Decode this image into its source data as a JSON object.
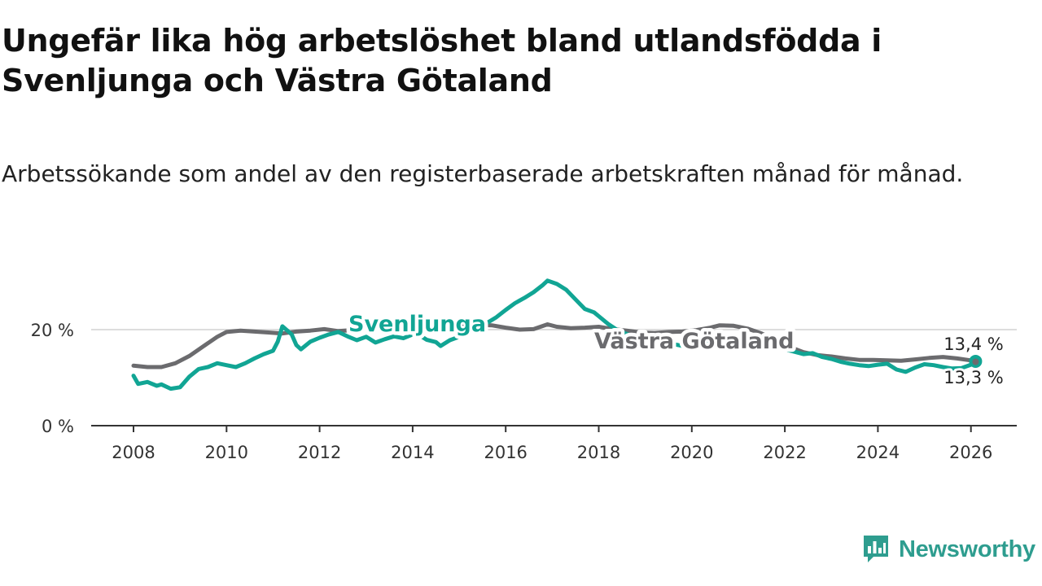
{
  "header": {
    "title": "Ungefär lika hög arbetslöshet bland utlandsfödda i Svenljunga och Västra Götaland",
    "subtitle": "Arbetssökande som andel av den registerbaserade arbetskraften månad för månad."
  },
  "brand": {
    "name": "Newsworthy",
    "icon": "newsworthy-logo-icon",
    "color": "#2e9d8f"
  },
  "chart_data": {
    "type": "line",
    "title": "Ungefär lika hög arbetslöshet bland utlandsfödda i Svenljunga och Västra Götaland",
    "xlabel": "",
    "ylabel": "",
    "xlim": [
      2007.4,
      2027.0
    ],
    "ylim": [
      0,
      30
    ],
    "x_ticks": [
      2008,
      2010,
      2012,
      2014,
      2016,
      2018,
      2020,
      2022,
      2024,
      2026
    ],
    "x_tick_labels": [
      "2008",
      "2010",
      "2012",
      "2014",
      "2016",
      "2018",
      "2020",
      "2022",
      "2024",
      "2026"
    ],
    "y_ticks": [
      0,
      20
    ],
    "y_tick_labels": [
      "0 %",
      "20 %"
    ],
    "grid": "horizontal",
    "series": [
      {
        "name": "Västra Götaland",
        "label": "Västra Götaland",
        "color": "#6b6b6e",
        "end_label": "13,3 %",
        "points": [
          [
            2008.0,
            12.5
          ],
          [
            2008.3,
            12.2
          ],
          [
            2008.6,
            12.2
          ],
          [
            2008.9,
            13.0
          ],
          [
            2009.2,
            14.5
          ],
          [
            2009.5,
            16.5
          ],
          [
            2009.8,
            18.5
          ],
          [
            2010.0,
            19.5
          ],
          [
            2010.3,
            19.8
          ],
          [
            2010.6,
            19.6
          ],
          [
            2010.9,
            19.4
          ],
          [
            2011.2,
            19.2
          ],
          [
            2011.5,
            19.6
          ],
          [
            2011.8,
            19.8
          ],
          [
            2012.1,
            20.1
          ],
          [
            2012.4,
            19.7
          ],
          [
            2012.7,
            19.9
          ],
          [
            2013.0,
            20.2
          ],
          [
            2013.3,
            20.4
          ],
          [
            2013.6,
            20.6
          ],
          [
            2013.9,
            20.8
          ],
          [
            2014.2,
            21.0
          ],
          [
            2014.5,
            21.2
          ],
          [
            2014.8,
            21.3
          ],
          [
            2015.1,
            21.0
          ],
          [
            2015.4,
            21.0
          ],
          [
            2015.7,
            20.9
          ],
          [
            2016.0,
            20.4
          ],
          [
            2016.3,
            20.0
          ],
          [
            2016.6,
            20.1
          ],
          [
            2016.9,
            21.1
          ],
          [
            2017.1,
            20.6
          ],
          [
            2017.4,
            20.3
          ],
          [
            2017.7,
            20.4
          ],
          [
            2018.0,
            20.6
          ],
          [
            2018.3,
            20.1
          ],
          [
            2018.6,
            19.8
          ],
          [
            2018.9,
            19.4
          ],
          [
            2019.2,
            19.3
          ],
          [
            2019.5,
            19.5
          ],
          [
            2019.8,
            19.6
          ],
          [
            2020.1,
            19.9
          ],
          [
            2020.4,
            20.4
          ],
          [
            2020.6,
            20.9
          ],
          [
            2020.9,
            20.8
          ],
          [
            2021.2,
            20.2
          ],
          [
            2021.5,
            19.2
          ],
          [
            2021.8,
            17.8
          ],
          [
            2022.1,
            16.4
          ],
          [
            2022.4,
            15.3
          ],
          [
            2022.7,
            14.7
          ],
          [
            2023.0,
            14.4
          ],
          [
            2023.3,
            14.0
          ],
          [
            2023.6,
            13.7
          ],
          [
            2023.9,
            13.7
          ],
          [
            2024.2,
            13.6
          ],
          [
            2024.5,
            13.5
          ],
          [
            2024.8,
            13.8
          ],
          [
            2025.1,
            14.1
          ],
          [
            2025.4,
            14.3
          ],
          [
            2025.7,
            14.0
          ],
          [
            2026.0,
            13.6
          ],
          [
            2026.1,
            13.3
          ]
        ]
      },
      {
        "name": "Svenljunga",
        "label": "Svenljunga",
        "color": "#11a594",
        "end_label": "13,4 %",
        "points": [
          [
            2008.0,
            10.4
          ],
          [
            2008.1,
            8.7
          ],
          [
            2008.3,
            9.1
          ],
          [
            2008.5,
            8.3
          ],
          [
            2008.6,
            8.6
          ],
          [
            2008.8,
            7.7
          ],
          [
            2009.0,
            8.0
          ],
          [
            2009.2,
            10.2
          ],
          [
            2009.4,
            11.8
          ],
          [
            2009.6,
            12.2
          ],
          [
            2009.8,
            13.0
          ],
          [
            2010.0,
            12.6
          ],
          [
            2010.2,
            12.2
          ],
          [
            2010.4,
            13.0
          ],
          [
            2010.6,
            14.0
          ],
          [
            2010.8,
            14.9
          ],
          [
            2011.0,
            15.6
          ],
          [
            2011.1,
            17.5
          ],
          [
            2011.2,
            20.7
          ],
          [
            2011.4,
            19.0
          ],
          [
            2011.5,
            16.8
          ],
          [
            2011.6,
            15.9
          ],
          [
            2011.8,
            17.5
          ],
          [
            2012.0,
            18.3
          ],
          [
            2012.2,
            19.0
          ],
          [
            2012.4,
            19.5
          ],
          [
            2012.6,
            18.6
          ],
          [
            2012.8,
            17.8
          ],
          [
            2013.0,
            18.5
          ],
          [
            2013.2,
            17.3
          ],
          [
            2013.4,
            18.0
          ],
          [
            2013.6,
            18.6
          ],
          [
            2013.8,
            18.2
          ],
          [
            2014.0,
            19.0
          ],
          [
            2014.2,
            18.5
          ],
          [
            2014.3,
            17.9
          ],
          [
            2014.5,
            17.4
          ],
          [
            2014.6,
            16.6
          ],
          [
            2014.8,
            17.8
          ],
          [
            2015.0,
            18.5
          ],
          [
            2015.2,
            19.3
          ],
          [
            2015.4,
            20.3
          ],
          [
            2015.6,
            21.4
          ],
          [
            2015.8,
            22.6
          ],
          [
            2016.0,
            24.1
          ],
          [
            2016.2,
            25.5
          ],
          [
            2016.4,
            26.6
          ],
          [
            2016.6,
            27.8
          ],
          [
            2016.8,
            29.3
          ],
          [
            2016.9,
            30.2
          ],
          [
            2017.1,
            29.5
          ],
          [
            2017.3,
            28.3
          ],
          [
            2017.5,
            26.3
          ],
          [
            2017.7,
            24.3
          ],
          [
            2017.9,
            23.6
          ],
          [
            2018.0,
            22.8
          ],
          [
            2018.2,
            21.2
          ],
          [
            2018.4,
            19.9
          ],
          [
            2018.6,
            19.1
          ],
          [
            2018.8,
            18.4
          ],
          [
            2019.0,
            17.9
          ],
          [
            2019.2,
            17.3
          ],
          [
            2019.4,
            17.6
          ],
          [
            2019.6,
            17.0
          ],
          [
            2019.8,
            16.6
          ],
          [
            2020.0,
            16.1
          ],
          [
            2020.2,
            17.4
          ],
          [
            2020.4,
            17.5
          ],
          [
            2020.6,
            17.0
          ],
          [
            2020.8,
            16.9
          ],
          [
            2021.0,
            17.1
          ],
          [
            2021.2,
            16.6
          ],
          [
            2021.4,
            16.3
          ],
          [
            2021.6,
            16.7
          ],
          [
            2021.8,
            16.2
          ],
          [
            2022.0,
            15.9
          ],
          [
            2022.2,
            15.4
          ],
          [
            2022.4,
            14.9
          ],
          [
            2022.6,
            15.1
          ],
          [
            2022.8,
            14.3
          ],
          [
            2023.0,
            13.9
          ],
          [
            2023.2,
            13.3
          ],
          [
            2023.4,
            12.9
          ],
          [
            2023.6,
            12.6
          ],
          [
            2023.8,
            12.4
          ],
          [
            2024.0,
            12.7
          ],
          [
            2024.2,
            12.9
          ],
          [
            2024.4,
            11.7
          ],
          [
            2024.6,
            11.2
          ],
          [
            2024.8,
            12.1
          ],
          [
            2025.0,
            12.8
          ],
          [
            2025.2,
            12.6
          ],
          [
            2025.4,
            12.2
          ],
          [
            2025.6,
            11.9
          ],
          [
            2025.8,
            12.0
          ],
          [
            2026.0,
            12.7
          ],
          [
            2026.1,
            13.4
          ]
        ]
      }
    ]
  }
}
